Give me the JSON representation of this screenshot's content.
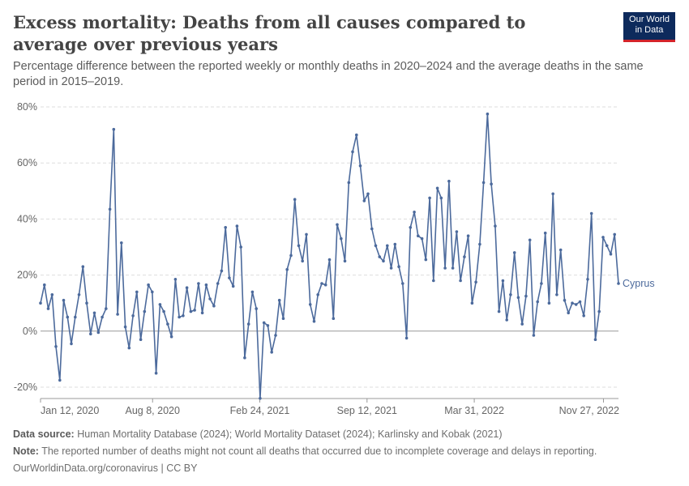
{
  "header": {
    "title": "Excess mortality: Deaths from all causes compared to average over previous years",
    "subtitle": "Percentage difference between the reported weekly or monthly deaths in 2020–2024 and the average deaths in the same period in 2015–2019.",
    "logo_line1": "Our World",
    "logo_line2": "in Data"
  },
  "footer": {
    "source_label": "Data source:",
    "source_text": "Human Mortality Database (2024); World Mortality Dataset (2024); Karlinsky and Kobak (2021)",
    "note_label": "Note:",
    "note_text": "The reported number of deaths might not count all deaths that occurred due to incomplete coverage and delays in reporting.",
    "url": "OurWorldinData.org/coronavirus | CC BY"
  },
  "colors": {
    "series": "#4c6a9c",
    "grid": "#dddddd",
    "axis_text": "#666666"
  },
  "chart_data": {
    "type": "line",
    "title": "Excess mortality: Deaths from all causes compared to average over previous years",
    "ylabel": "",
    "xlabel": "",
    "ylim": [
      -20,
      80
    ],
    "y_ticks": [
      -20,
      0,
      20,
      40,
      60,
      80
    ],
    "y_tick_labels": [
      "-20%",
      "0%",
      "20%",
      "40%",
      "60%",
      "80%"
    ],
    "x_range": [
      "2020-01-12",
      "2022-12-25"
    ],
    "x_ticks": [
      "2020-01-12",
      "2020-08-08",
      "2021-02-24",
      "2021-09-12",
      "2022-03-31",
      "2022-11-27"
    ],
    "x_tick_labels": [
      "Jan 12, 2020",
      "Aug 8, 2020",
      "Feb 24, 2021",
      "Sep 12, 2021",
      "Mar 31, 2022",
      "Nov 27, 2022"
    ],
    "grid": true,
    "series": [
      {
        "name": "Cyprus",
        "values": [
          10,
          16.5,
          8,
          13,
          -5.5,
          -17.5,
          11,
          5,
          -4.5,
          5,
          13,
          23,
          10,
          -1,
          6.5,
          -0.5,
          5,
          8,
          43.5,
          72,
          6,
          31.5,
          1.5,
          -6,
          5.5,
          14,
          -3,
          7,
          16.5,
          14,
          -15,
          9.5,
          7,
          2.5,
          -2,
          18.5,
          5,
          5.5,
          15.5,
          7,
          7.5,
          17,
          6.5,
          16.5,
          11.5,
          9,
          17,
          21.5,
          37,
          19,
          16,
          37.5,
          30,
          -9.5,
          2.5,
          14,
          8,
          -24,
          3,
          2,
          -7.5,
          -1.5,
          11,
          4.5,
          22,
          27,
          47,
          30.5,
          25,
          34.5,
          9.5,
          3.5,
          13,
          17,
          16.5,
          25.5,
          4.5,
          38,
          33,
          25,
          53,
          64,
          70,
          59,
          46.5,
          49,
          36.5,
          30.5,
          26.5,
          25,
          30.5,
          22.5,
          31,
          23,
          17,
          -2.5,
          37,
          42.5,
          34,
          33,
          25.5,
          47.5,
          18,
          51,
          47.5,
          22.5,
          53.5,
          22.5,
          35.5,
          18,
          26.5,
          34,
          10,
          17.5,
          31,
          53,
          77.5,
          52.5,
          37.5,
          7,
          18,
          4,
          13,
          28,
          12,
          2.5,
          12.5,
          32.5,
          -1.5,
          10.5,
          17,
          35,
          10,
          49,
          13,
          29,
          11,
          6.5,
          10,
          9.5,
          10.5,
          5.5,
          18.5,
          42,
          -3,
          7,
          33.5,
          30.5,
          27.5,
          34.5,
          17
        ]
      }
    ]
  }
}
